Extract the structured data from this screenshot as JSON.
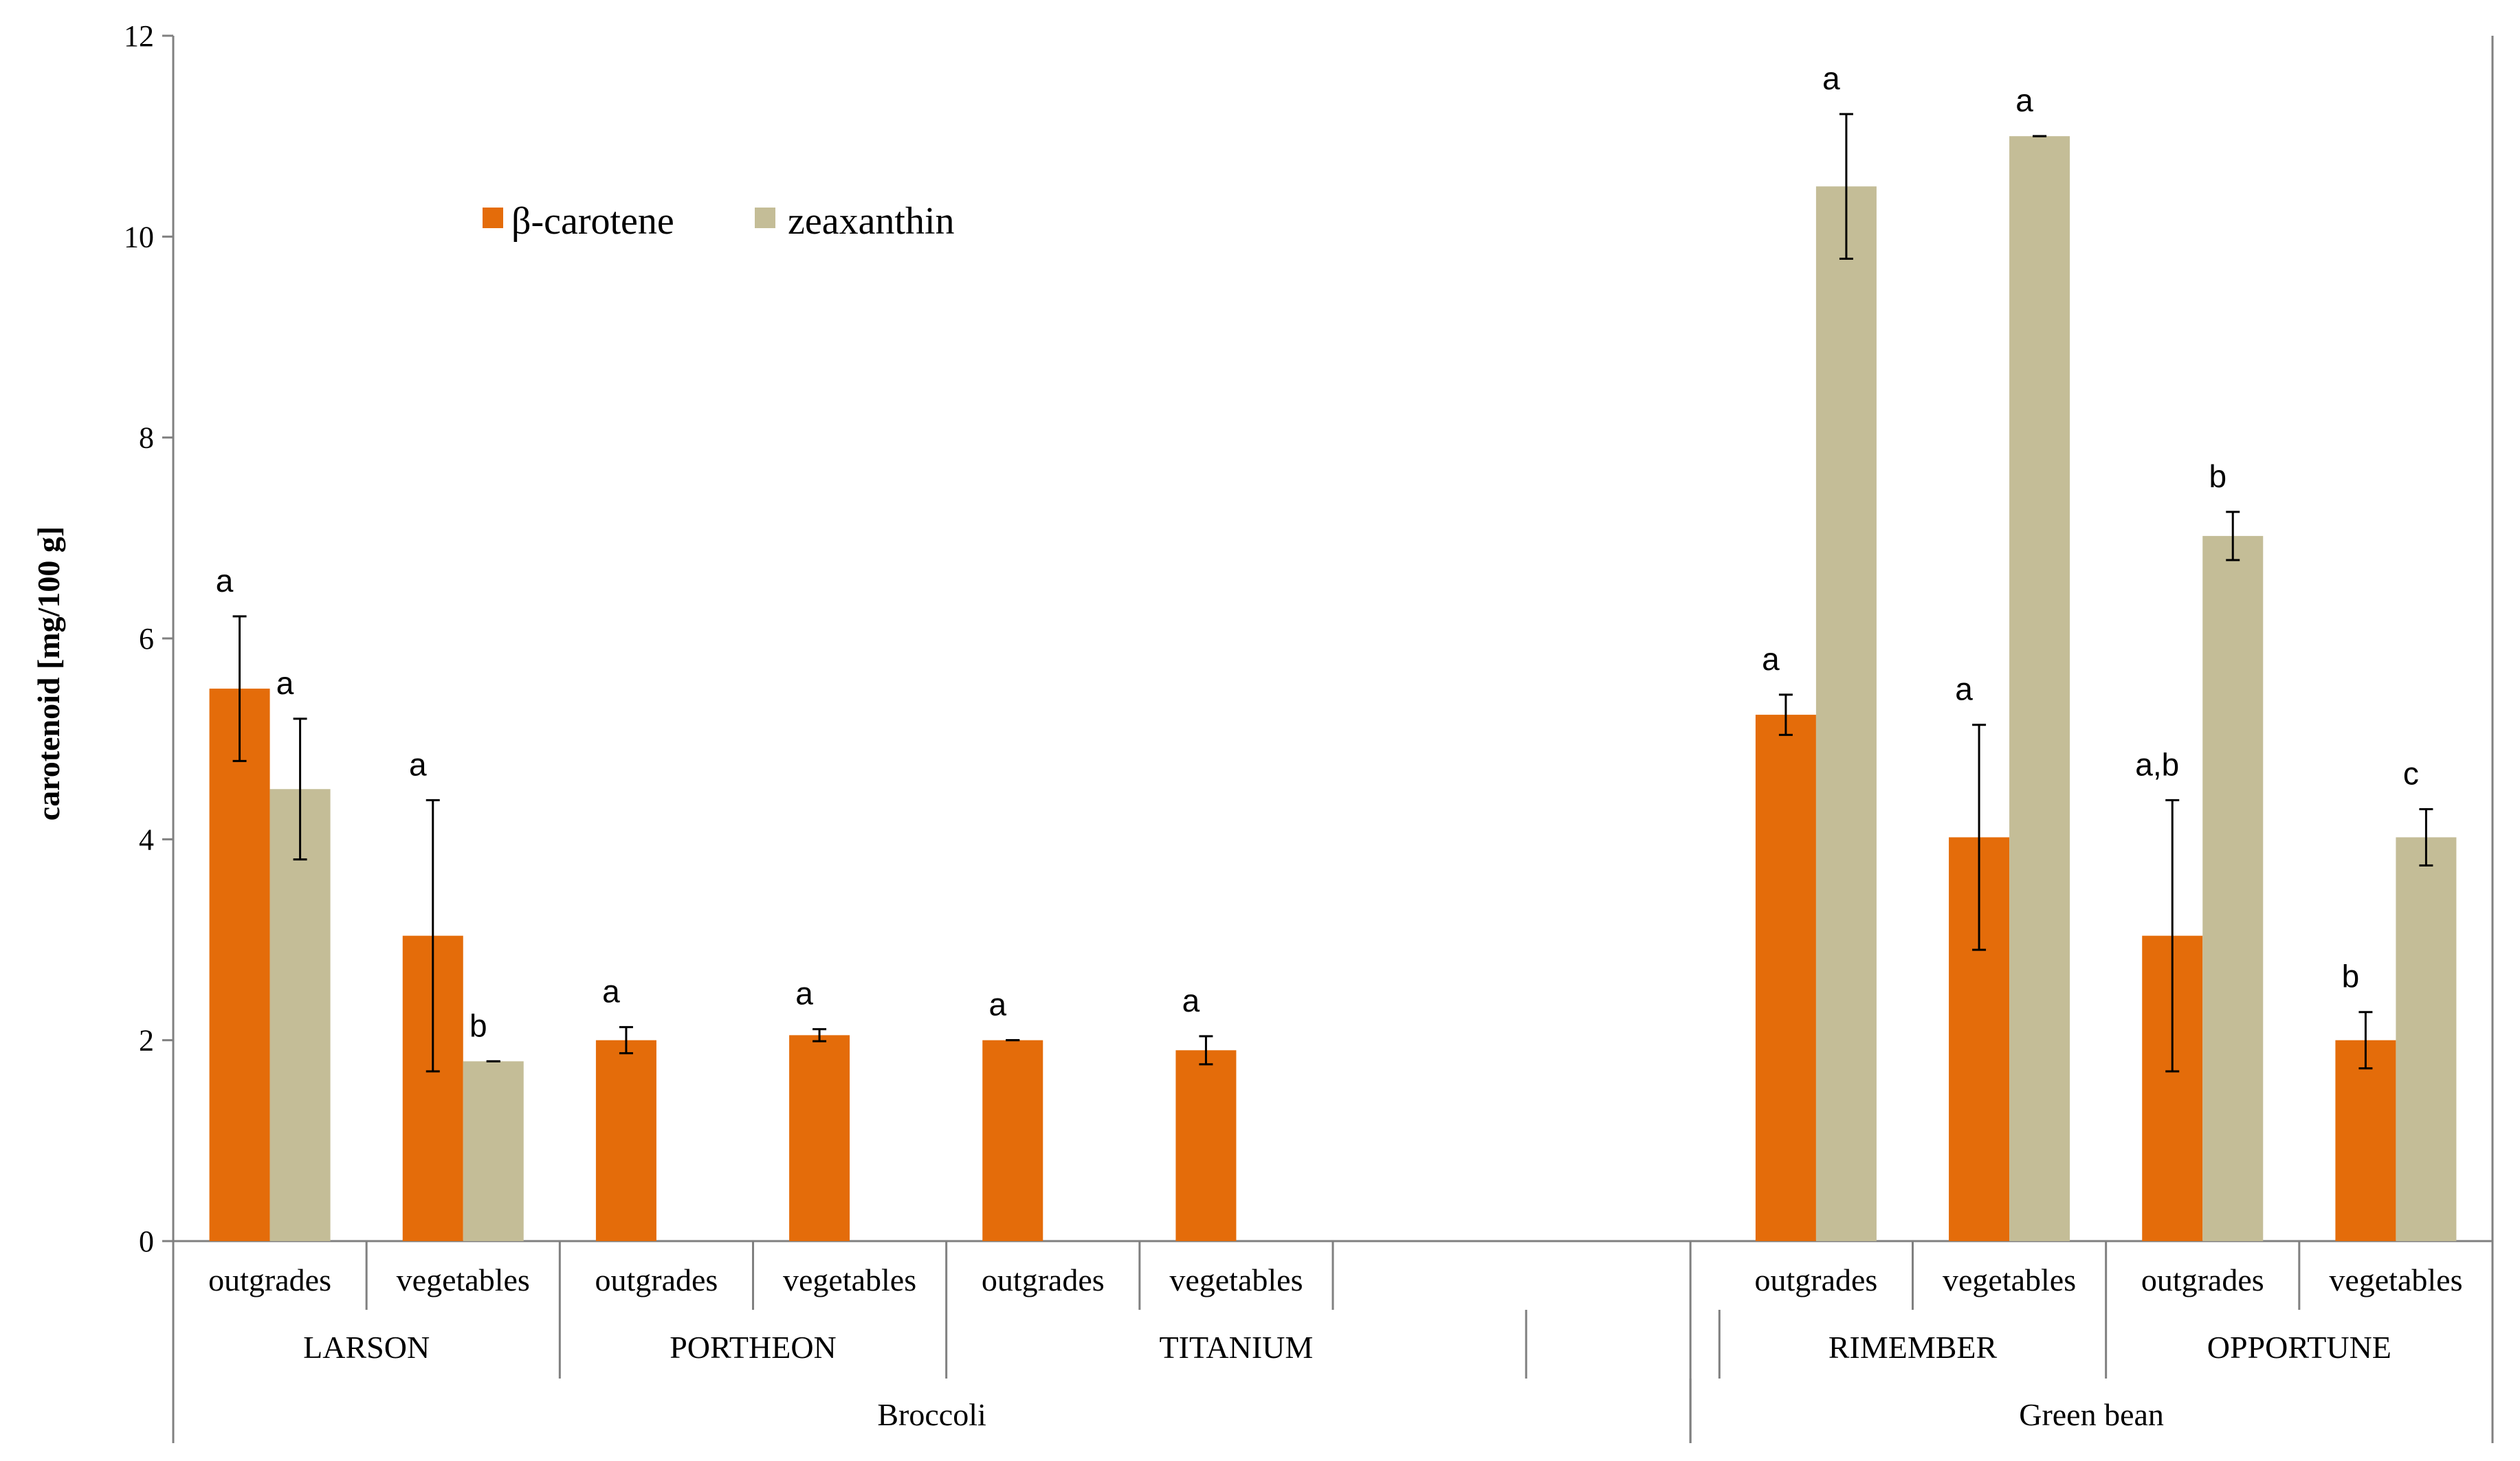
{
  "chart_data": {
    "type": "bar",
    "title": "",
    "ylabel": "carotenoid [mg/100 g]",
    "xlabel": "",
    "ylim": [
      0,
      12
    ],
    "yticks": [
      0,
      2,
      4,
      6,
      8,
      10,
      12
    ],
    "grid": false,
    "legend_position": "top-left",
    "colors": {
      "beta": "#e46c0a",
      "zeax": "#c4bd97",
      "axis": "#808080",
      "error": "#000000"
    },
    "series": [
      {
        "key": "beta",
        "name": "β-carotene"
      },
      {
        "key": "zeax",
        "name": "zeaxanthin"
      }
    ],
    "categories": [
      {
        "label": "outgrades",
        "variety": "LARSON",
        "crop": "Broccoli",
        "beta": {
          "value": 5.5,
          "err": 0.72,
          "letter": "a"
        },
        "zeax": {
          "value": 4.5,
          "err": 0.7,
          "letter": "a"
        }
      },
      {
        "label": "vegetables",
        "variety": "LARSON",
        "crop": "Broccoli",
        "beta": {
          "value": 3.04,
          "err": 1.35,
          "letter": "a"
        },
        "zeax": {
          "value": 1.79,
          "err": 0.0,
          "letter": "b"
        }
      },
      {
        "label": "outgrades",
        "variety": "PORTHEON",
        "crop": "Broccoli",
        "beta": {
          "value": 2.0,
          "err": 0.13,
          "letter": "a"
        }
      },
      {
        "label": "vegetables",
        "variety": "PORTHEON",
        "crop": "Broccoli",
        "beta": {
          "value": 2.05,
          "err": 0.06,
          "letter": "a"
        }
      },
      {
        "label": "outgrades",
        "variety": "TITANIUM",
        "crop": "Broccoli",
        "beta": {
          "value": 2.0,
          "err": 0.0,
          "letter": "a"
        }
      },
      {
        "label": "vegetables",
        "variety": "TITANIUM",
        "crop": "Broccoli",
        "beta": {
          "value": 1.9,
          "err": 0.14,
          "letter": "a"
        }
      },
      {
        "label": "",
        "variety": "TITANIUM",
        "crop": "Broccoli"
      },
      {
        "label": "",
        "variety": "",
        "crop": "Broccoli",
        "gap": true
      },
      {
        "label": "outgrades",
        "variety": "RIMEMBER",
        "crop": "Green bean",
        "beta": {
          "value": 5.24,
          "err": 0.2,
          "letter": "a"
        },
        "zeax": {
          "value": 10.5,
          "err": 0.72,
          "letter": "a"
        }
      },
      {
        "label": "vegetables",
        "variety": "RIMEMBER",
        "crop": "Green bean",
        "beta": {
          "value": 4.02,
          "err": 1.12,
          "letter": "a"
        },
        "zeax": {
          "value": 11.0,
          "err": 0.0,
          "letter": "a"
        }
      },
      {
        "label": "outgrades",
        "variety": "OPPORTUNE",
        "crop": "Green bean",
        "beta": {
          "value": 3.04,
          "err": 1.35,
          "letter": "a,b"
        },
        "zeax": {
          "value": 7.02,
          "err": 0.24,
          "letter": "b"
        }
      },
      {
        "label": "vegetables",
        "variety": "OPPORTUNE",
        "crop": "Green bean",
        "beta": {
          "value": 2.0,
          "err": 0.28,
          "letter": "b"
        },
        "zeax": {
          "value": 4.02,
          "err": 0.28,
          "letter": "c"
        }
      }
    ],
    "varieties": [
      {
        "label": "LARSON",
        "start": 0,
        "end": 2
      },
      {
        "label": "PORTHEON",
        "start": 2,
        "end": 4
      },
      {
        "label": "TITANIUM",
        "start": 4,
        "end": 7
      },
      {
        "label": "RIMEMBER",
        "start": 8,
        "end": 10
      },
      {
        "label": "OPPORTUNE",
        "start": 10,
        "end": 12
      }
    ],
    "crops": [
      {
        "label": "Broccoli",
        "start": 0,
        "end": 7
      },
      {
        "label": "Green bean",
        "start": 7,
        "end": 12
      }
    ]
  }
}
